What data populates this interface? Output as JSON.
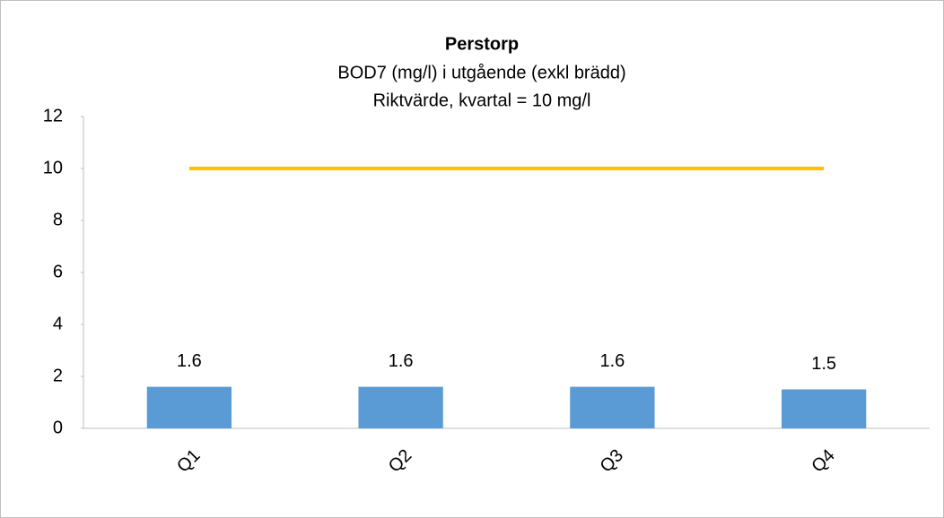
{
  "chart_data": {
    "type": "bar",
    "title": "Perstorp",
    "subtitles": [
      "BOD7 (mg/l) i utgående (exkl brädd)",
      "Riktvärde, kvartal = 10 mg/l"
    ],
    "categories": [
      "Q1",
      "Q2",
      "Q3",
      "Q4"
    ],
    "series": [
      {
        "type": "bar",
        "color": "#5b9bd5",
        "values": [
          1.6,
          1.6,
          1.6,
          1.5
        ]
      },
      {
        "type": "line",
        "color": "#ffc000",
        "values": [
          10,
          10,
          10,
          10
        ]
      }
    ],
    "ylim": [
      0,
      12
    ],
    "yticks": [
      0,
      2,
      4,
      6,
      8,
      10,
      12
    ],
    "grid": false
  }
}
